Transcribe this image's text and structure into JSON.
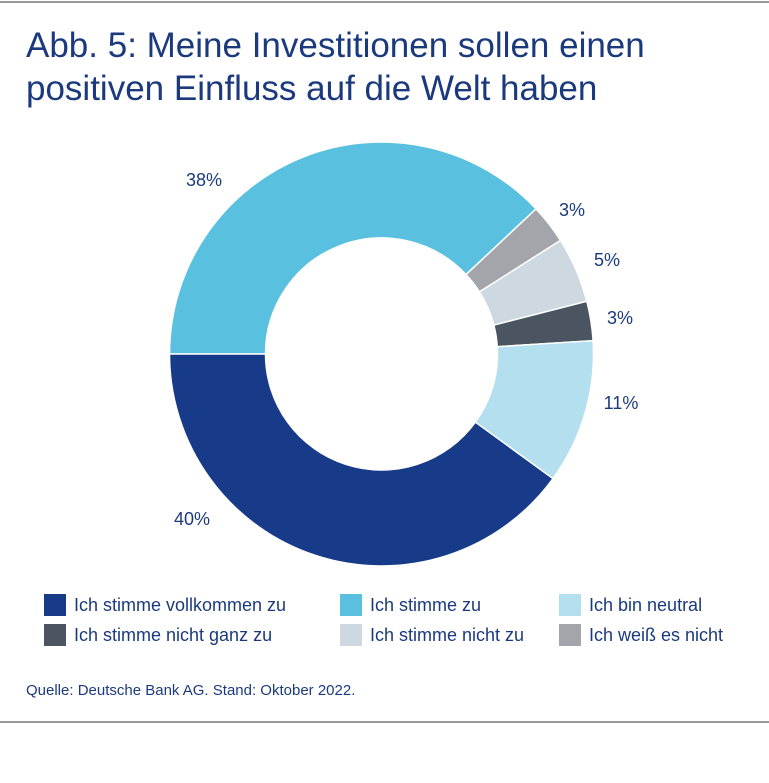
{
  "chart_data": {
    "type": "pie",
    "donut": true,
    "title": "Abb. 5: Meine Investitionen sollen einen positiven Einfluss auf die Welt haben",
    "slices": [
      {
        "name": "Ich stimme zu",
        "value": 38,
        "label": "38%",
        "color": "#59c1df"
      },
      {
        "name": "Ich weiß es nicht",
        "value": 3,
        "label": "3%",
        "color": "#a3a5ab"
      },
      {
        "name": "Ich stimme nicht zu",
        "value": 5,
        "label": "5%",
        "color": "#cdd8e1"
      },
      {
        "name": "Ich stimme nicht ganz zu",
        "value": 3,
        "label": "3%",
        "color": "#4b5562"
      },
      {
        "name": "Ich bin neutral",
        "value": 11,
        "label": "11%",
        "color": "#b3dfef"
      },
      {
        "name": "Ich stimme vollkommen zu",
        "value": 40,
        "label": "40%",
        "color": "#173b88"
      }
    ],
    "legend": {
      "placement": "bottom",
      "entries": [
        {
          "label": "Ich stimme vollkommen zu",
          "color": "#173b88"
        },
        {
          "label": "Ich stimme zu",
          "color": "#59c1df"
        },
        {
          "label": "Ich bin neutral",
          "color": "#b3dfef"
        },
        {
          "label": "Ich stimme nicht ganz zu",
          "color": "#4b5562"
        },
        {
          "label": "Ich stimme nicht zu",
          "color": "#cdd8e1"
        },
        {
          "label": "Ich weiß es nicht",
          "color": "#a3a5ab"
        }
      ]
    },
    "source": "Quelle: Deutsche Bank AG. Stand: Oktober 2022."
  }
}
